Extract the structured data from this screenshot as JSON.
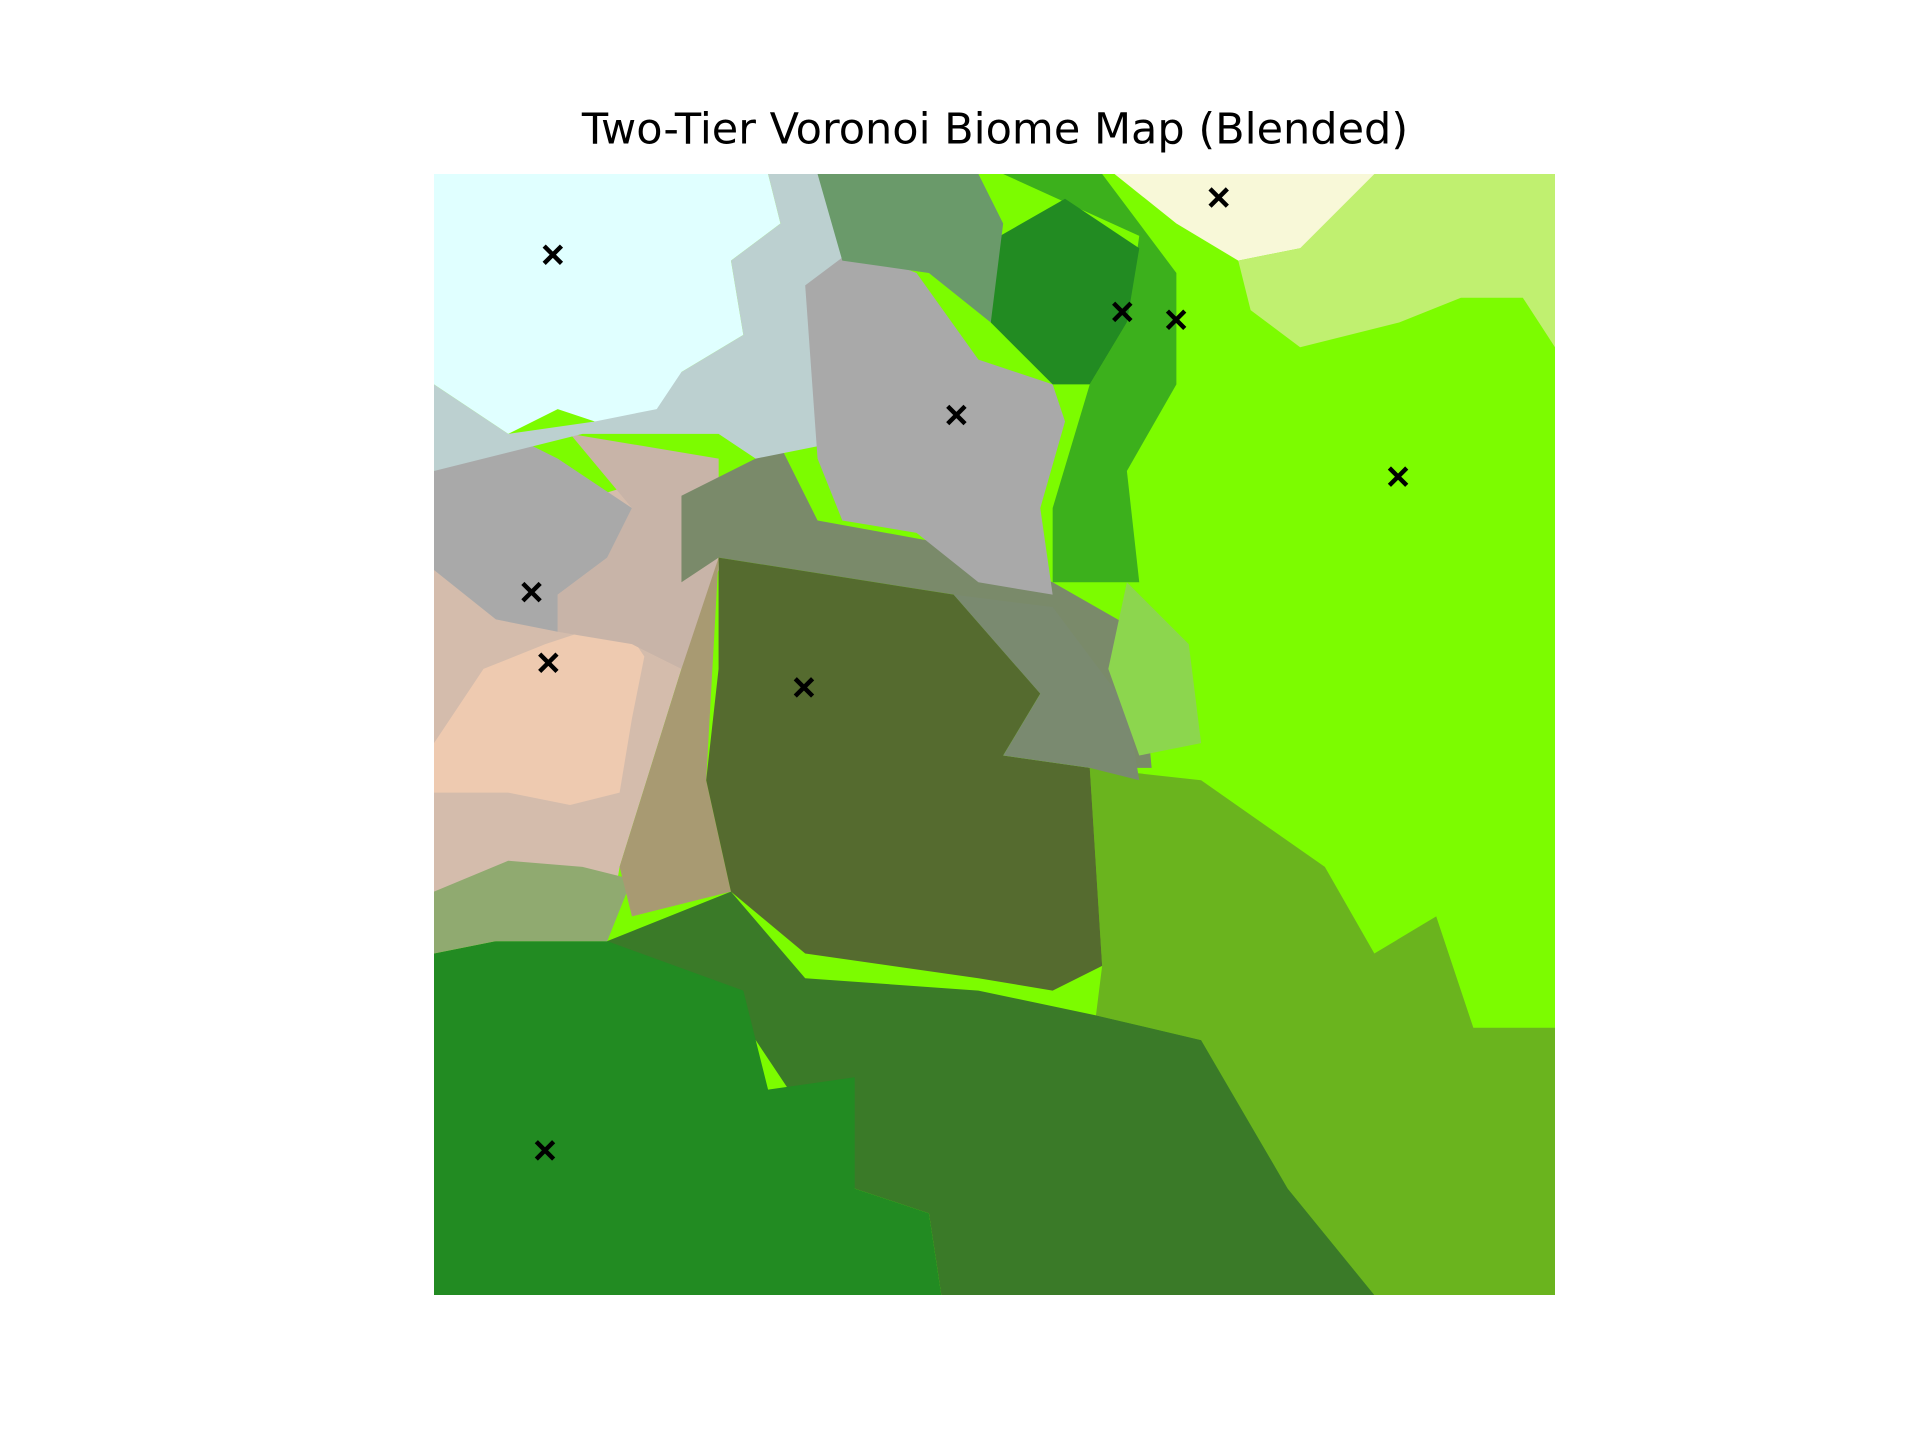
{
  "chart_data": {
    "type": "scatter",
    "title": "Two-Tier Voronoi Biome Map (Blended)",
    "x": [
      0.106,
      0.7,
      0.614,
      0.662,
      0.466,
      0.86,
      0.087,
      0.102,
      0.33,
      0.099
    ],
    "values": [
      0.928,
      0.979,
      0.877,
      0.87,
      0.785,
      0.73,
      0.627,
      0.564,
      0.542,
      0.129
    ],
    "xlim": [
      0,
      1
    ],
    "ylim": [
      0,
      1
    ],
    "marker": "x",
    "color": "#000000"
  }
}
